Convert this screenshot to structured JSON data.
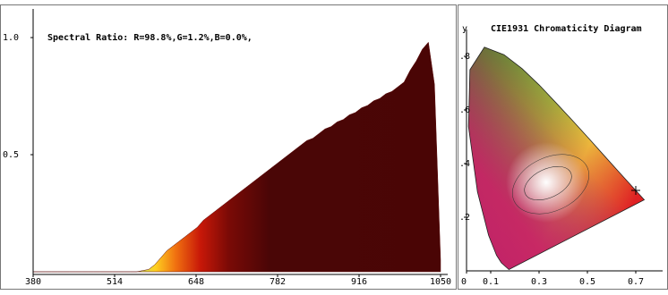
{
  "chart_data": [
    {
      "type": "area",
      "title": "Spectral Ratio:  R=98.8%,G=1.2%,B=0.0%,",
      "x": [
        380,
        390,
        400,
        410,
        420,
        430,
        440,
        450,
        460,
        470,
        480,
        490,
        500,
        510,
        520,
        530,
        540,
        550,
        560,
        570,
        580,
        590,
        600,
        610,
        620,
        630,
        640,
        650,
        660,
        670,
        680,
        690,
        700,
        710,
        720,
        730,
        740,
        750,
        760,
        770,
        780,
        790,
        800,
        810,
        820,
        830,
        840,
        850,
        860,
        870,
        880,
        890,
        900,
        910,
        920,
        930,
        940,
        950,
        960,
        970,
        980,
        990,
        1000,
        1010,
        1020,
        1030,
        1040,
        1050
      ],
      "values": [
        0,
        0,
        0,
        0,
        0,
        0,
        0,
        0,
        0,
        0,
        0,
        0,
        0,
        0,
        0,
        0,
        0,
        0,
        0.005,
        0.01,
        0.03,
        0.06,
        0.09,
        0.11,
        0.13,
        0.15,
        0.17,
        0.19,
        0.22,
        0.24,
        0.26,
        0.28,
        0.3,
        0.32,
        0.34,
        0.36,
        0.38,
        0.4,
        0.42,
        0.44,
        0.46,
        0.48,
        0.5,
        0.52,
        0.54,
        0.56,
        0.57,
        0.59,
        0.61,
        0.62,
        0.64,
        0.65,
        0.67,
        0.68,
        0.7,
        0.71,
        0.73,
        0.74,
        0.76,
        0.77,
        0.79,
        0.81,
        0.86,
        0.9,
        0.95,
        0.98,
        0.8,
        0.05
      ],
      "xlim": [
        380,
        1050
      ],
      "xticks": [
        380,
        514,
        648,
        782,
        916,
        1050
      ],
      "ylim": [
        0,
        1.12
      ],
      "yticks": [
        0.5,
        {
          "value": 1,
          "label": "1.0"
        }
      ]
    },
    {
      "type": "scatter",
      "title": "CIE1931 Chromaticity Diagram",
      "y_label": "y",
      "x": [
        0.7
      ],
      "values": [
        0.3
      ],
      "xlim": [
        0,
        0.8
      ],
      "xticks": [
        0,
        0.1,
        0.3,
        0.5,
        0.7
      ],
      "ylim": [
        0,
        0.9
      ],
      "yticks": [
        {
          "value": 0.2,
          "label": ".2"
        },
        {
          "value": 0.4,
          "label": ".4"
        },
        {
          "value": 0.6,
          "label": ".6"
        },
        {
          "value": 0.8,
          "label": ".8"
        }
      ]
    }
  ]
}
